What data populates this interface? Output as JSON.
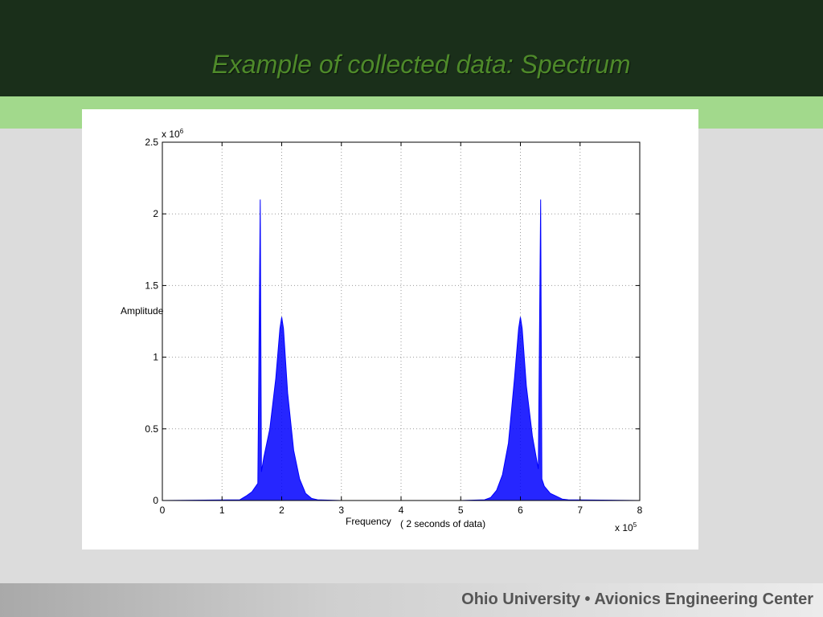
{
  "slide": {
    "title": "Example of collected data: Spectrum",
    "footer": "Ohio University • Avionics Engineering Center",
    "colors": {
      "header_bg": "#1a2f1a",
      "title_text": "#4e8a2a",
      "band": "#a2d98c",
      "background": "#dcdcdc",
      "series": "#0000ff"
    }
  },
  "chart_data": {
    "type": "line",
    "title": "",
    "xlabel": "Frequency",
    "xlabel_note": "( 2 seconds of data)",
    "ylabel": "Amplitude",
    "x_multiplier": "x 10",
    "x_exponent": "5",
    "y_multiplier": "x 10",
    "y_exponent": "6",
    "xlim": [
      0,
      8
    ],
    "ylim": [
      0,
      2.5
    ],
    "x_ticks": [
      0,
      1,
      2,
      3,
      4,
      5,
      6,
      7,
      8
    ],
    "y_ticks": [
      0,
      0.5,
      1,
      1.5,
      2,
      2.5
    ],
    "x_tick_labels": [
      "0",
      "1",
      "2",
      "3",
      "4",
      "5",
      "6",
      "7",
      "8"
    ],
    "y_tick_labels": [
      "0",
      "0.5",
      "1",
      "1.5",
      "2",
      "2.5"
    ],
    "grid": true,
    "series": [
      {
        "color": "#0000ff",
        "points": [
          [
            0,
            0
          ],
          [
            1.3,
            0.005
          ],
          [
            1.4,
            0.03
          ],
          [
            1.5,
            0.06
          ],
          [
            1.6,
            0.12
          ],
          [
            1.64,
            2.1
          ],
          [
            1.66,
            0.2
          ],
          [
            1.7,
            0.3
          ],
          [
            1.8,
            0.5
          ],
          [
            1.9,
            0.85
          ],
          [
            1.97,
            1.2
          ],
          [
            2.0,
            1.28
          ],
          [
            2.03,
            1.2
          ],
          [
            2.1,
            0.75
          ],
          [
            2.2,
            0.35
          ],
          [
            2.3,
            0.15
          ],
          [
            2.4,
            0.05
          ],
          [
            2.5,
            0.015
          ],
          [
            2.6,
            0.005
          ],
          [
            3,
            0
          ],
          [
            5,
            0
          ],
          [
            5.4,
            0.005
          ],
          [
            5.5,
            0.02
          ],
          [
            5.6,
            0.07
          ],
          [
            5.7,
            0.18
          ],
          [
            5.8,
            0.4
          ],
          [
            5.9,
            0.85
          ],
          [
            5.97,
            1.2
          ],
          [
            6.0,
            1.28
          ],
          [
            6.03,
            1.2
          ],
          [
            6.1,
            0.8
          ],
          [
            6.2,
            0.45
          ],
          [
            6.3,
            0.22
          ],
          [
            6.34,
            2.1
          ],
          [
            6.36,
            0.15
          ],
          [
            6.4,
            0.1
          ],
          [
            6.5,
            0.05
          ],
          [
            6.6,
            0.03
          ],
          [
            6.7,
            0.01
          ],
          [
            6.8,
            0.005
          ],
          [
            8,
            0
          ]
        ]
      }
    ]
  }
}
